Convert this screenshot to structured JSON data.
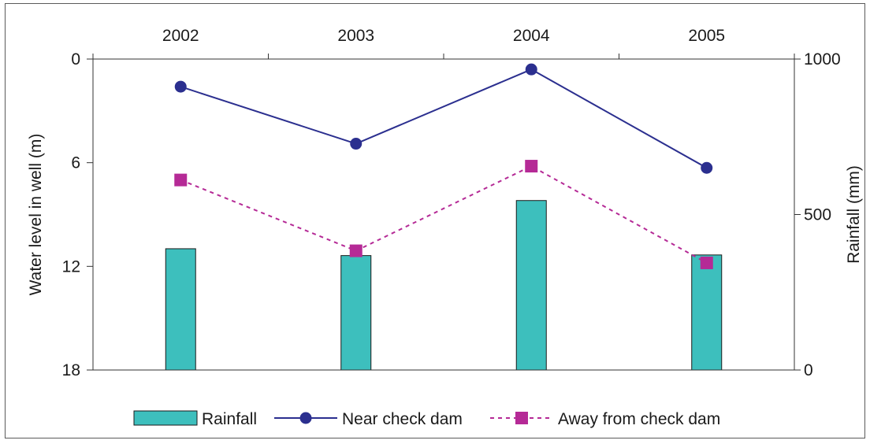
{
  "chart_data": {
    "type": "bar+line",
    "categories": [
      "2002",
      "2003",
      "2004",
      "2005"
    ],
    "left_axis": {
      "label": "Water level in well (m)",
      "range": [
        0,
        18
      ],
      "inverted": true,
      "ticks": [
        "0",
        "6",
        "12",
        "18"
      ],
      "tick_values": [
        0,
        6,
        12,
        18
      ]
    },
    "right_axis": {
      "label": "Rainfall (mm)",
      "range": [
        0,
        1000
      ],
      "ticks": [
        "0",
        "500",
        "1000"
      ],
      "tick_values": [
        0,
        500,
        1000
      ]
    },
    "x_axis_position": "top",
    "series": [
      {
        "name": "Rainfall",
        "type": "bar",
        "axis": "right",
        "color": "#3dbfbd",
        "values": [
          390,
          368,
          545,
          370
        ]
      },
      {
        "name": "Near check dam",
        "type": "line",
        "axis": "left",
        "color": "#2b2f8f",
        "marker": "circle",
        "values": [
          1.6,
          4.9,
          0.6,
          6.3
        ]
      },
      {
        "name": "Away from check dam",
        "type": "line",
        "axis": "left",
        "color": "#b52a96",
        "marker": "square",
        "dashed": true,
        "values": [
          7.0,
          11.1,
          6.2,
          11.8
        ]
      }
    ],
    "legend": {
      "position": "bottom"
    }
  }
}
